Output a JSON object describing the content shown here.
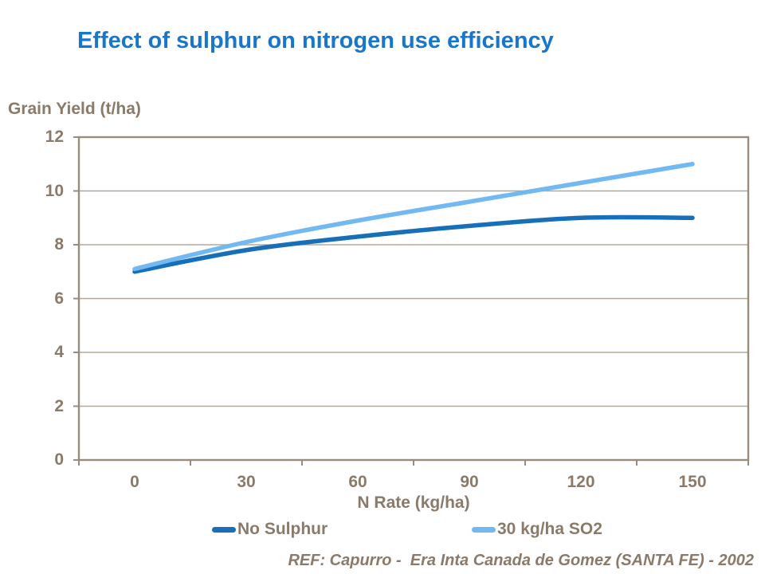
{
  "slide": {
    "title": "Effect of sulphur on nitrogen use efficiency",
    "footer": "REF: Capurro -  Era Inta Canada de Gomez (SANTA FE) - 2002"
  },
  "colors": {
    "background": "#FFFFFF",
    "title": "#1777CE",
    "text": "#8A7A69",
    "axis": "#9A8C7C",
    "grid": "#B6A898",
    "series_no_sulphur": "#166FB8",
    "series_so2": "#72B8F2"
  },
  "chart_data": {
    "type": "line",
    "smooth": true,
    "title": "Effect of sulphur on nitrogen use efficiency",
    "categories": [
      "0",
      "30",
      "60",
      "90",
      "120",
      "150"
    ],
    "series": [
      {
        "name": "No Sulphur",
        "color": "#166FB8",
        "values": [
          7.0,
          7.8,
          8.3,
          8.7,
          9.0,
          9.0
        ]
      },
      {
        "name": "30 kg/ha SO2",
        "color": "#72B8F2",
        "values": [
          7.1,
          8.1,
          8.9,
          9.6,
          10.3,
          11.0
        ]
      }
    ],
    "xlabel": "N Rate (kg/ha)",
    "ylabel": "Grain Yield (t/ha)",
    "ylim": [
      0,
      12
    ],
    "yticks": [
      0,
      2,
      4,
      6,
      8,
      10,
      12
    ],
    "grid": true,
    "legend_position": "bottom"
  }
}
